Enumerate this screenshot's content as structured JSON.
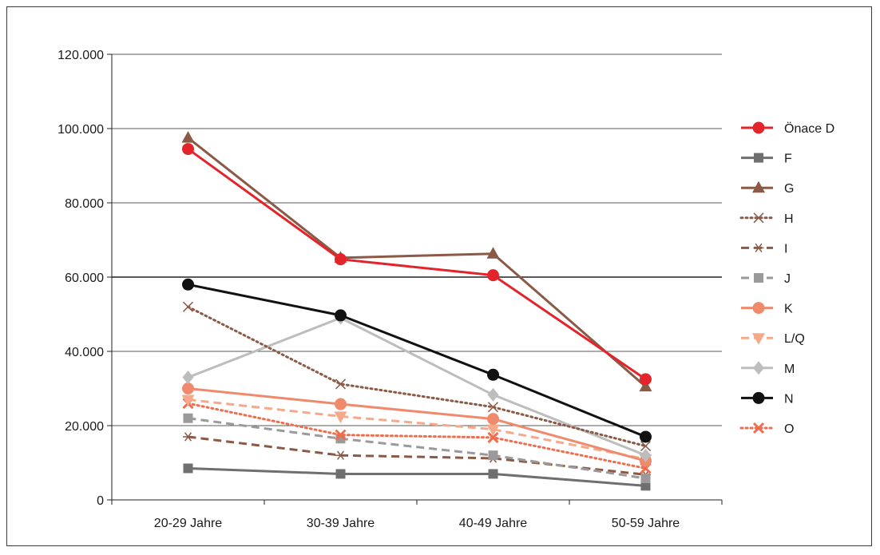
{
  "chart_data": {
    "type": "line",
    "title": "",
    "xlabel": "",
    "ylabel": "",
    "categories": [
      "20-29 Jahre",
      "30-39 Jahre",
      "40-49 Jahre",
      "50-59 Jahre"
    ],
    "ylim": [
      0,
      120000
    ],
    "yticks": [
      0,
      20000,
      40000,
      60000,
      80000,
      100000,
      120000
    ],
    "ytick_labels": [
      "0",
      "20.000",
      "40.000",
      "60.000",
      "80.000",
      "100.000",
      "120.000"
    ],
    "grid": true,
    "legend_position": "right",
    "series": [
      {
        "name": "Önace D",
        "values": [
          94500,
          64800,
          60500,
          32500
        ],
        "color": "#e3242b",
        "dash": "solid",
        "marker": "circle"
      },
      {
        "name": "F",
        "values": [
          8500,
          7000,
          7000,
          3800
        ],
        "color": "#6f6f6f",
        "dash": "solid",
        "marker": "square"
      },
      {
        "name": "G",
        "values": [
          97500,
          65200,
          66300,
          30500
        ],
        "color": "#8b5a46",
        "dash": "solid",
        "marker": "triangle"
      },
      {
        "name": "H",
        "values": [
          52000,
          31200,
          25000,
          14500
        ],
        "color": "#8b5a46",
        "dash": "dotted",
        "marker": "x"
      },
      {
        "name": "I",
        "values": [
          17000,
          12000,
          11200,
          6800
        ],
        "color": "#8b5a46",
        "dash": "dashed",
        "marker": "asterisk"
      },
      {
        "name": "J",
        "values": [
          22000,
          16500,
          12000,
          5800
        ],
        "color": "#9a9a9a",
        "dash": "dashed",
        "marker": "square"
      },
      {
        "name": "K",
        "values": [
          30000,
          25800,
          21800,
          10500
        ],
        "color": "#f08a6c",
        "dash": "solid",
        "marker": "circle"
      },
      {
        "name": "L/Q",
        "values": [
          27000,
          22500,
          19000,
          11000
        ],
        "color": "#f5a98a",
        "dash": "dashed",
        "marker": "triangle-down"
      },
      {
        "name": "M",
        "values": [
          33000,
          49000,
          28300,
          12000
        ],
        "color": "#bdbdbd",
        "dash": "solid",
        "marker": "diamond"
      },
      {
        "name": "N",
        "values": [
          58000,
          49700,
          33700,
          17000
        ],
        "color": "#111111",
        "dash": "solid",
        "marker": "circle"
      },
      {
        "name": "O",
        "values": [
          26000,
          17500,
          16800,
          8500
        ],
        "color": "#ee6d4f",
        "dash": "dotted",
        "marker": "x-bold"
      }
    ]
  }
}
